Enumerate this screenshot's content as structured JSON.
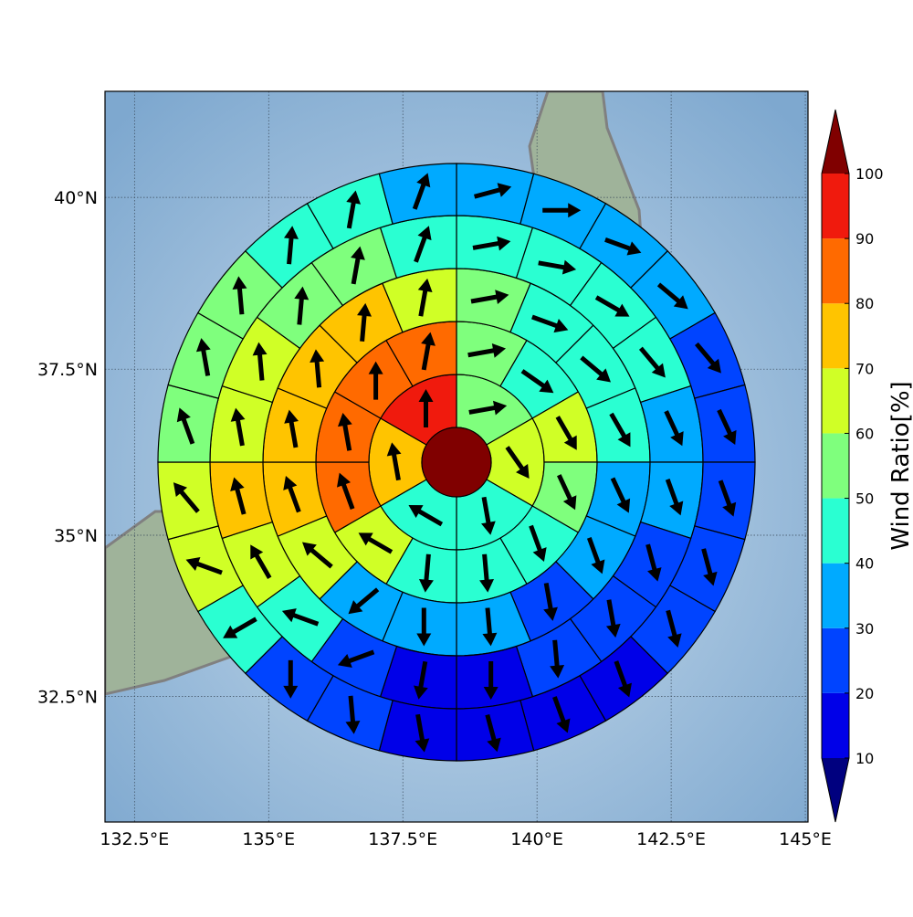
{
  "chart_data": {
    "type": "polar-sector-map",
    "projection": "mercator",
    "xlim": [
      131.95,
      145.05
    ],
    "ylim": [
      30.5,
      41.5
    ],
    "xticks": [
      {
        "value": 132.5,
        "label": "132.5°E"
      },
      {
        "value": 135,
        "label": "135°E"
      },
      {
        "value": 137.5,
        "label": "137.5°E"
      },
      {
        "value": 140,
        "label": "140°E"
      },
      {
        "value": 142.5,
        "label": "142.5°E"
      },
      {
        "value": 145,
        "label": "145°E"
      }
    ],
    "yticks": [
      {
        "value": 32.5,
        "label": "32.5°N"
      },
      {
        "value": 35,
        "label": "35°N"
      },
      {
        "value": 37.5,
        "label": "37.5°N"
      },
      {
        "value": 40,
        "label": "40°N"
      }
    ],
    "grid": true,
    "center_value": 100,
    "rings": [
      {
        "values": [
          55,
          65,
          45,
          45,
          75,
          95
        ],
        "directions": [
          80,
          145,
          170,
          300,
          350,
          0
        ]
      },
      {
        "values": [
          55,
          45,
          65,
          55,
          45,
          45,
          45,
          65,
          85,
          85,
          80,
          85
        ],
        "directions": [
          80,
          125,
          150,
          155,
          160,
          175,
          185,
          300,
          340,
          350,
          0,
          10
        ]
      },
      {
        "values": [
          55,
          45,
          45,
          45,
          35,
          35,
          25,
          35,
          35,
          35,
          65,
          75,
          75,
          75,
          75,
          65
        ],
        "directions": [
          80,
          110,
          130,
          150,
          155,
          160,
          170,
          175,
          180,
          230,
          310,
          340,
          350,
          355,
          5,
          10
        ]
      },
      {
        "values": [
          45,
          45,
          45,
          40,
          35,
          35,
          25,
          25,
          20,
          15,
          15,
          25,
          45,
          65,
          75,
          65,
          65,
          55,
          55,
          45
        ],
        "directions": [
          80,
          100,
          120,
          140,
          155,
          160,
          165,
          170,
          175,
          180,
          190,
          250,
          290,
          330,
          345,
          350,
          355,
          5,
          10,
          20
        ]
      },
      {
        "values": [
          35,
          35,
          35,
          35,
          25,
          25,
          25,
          25,
          20,
          15,
          15,
          15,
          15,
          25,
          25,
          45,
          65,
          65,
          55,
          55,
          55,
          45,
          45,
          35
        ],
        "directions": [
          75,
          90,
          110,
          130,
          140,
          155,
          160,
          165,
          165,
          160,
          160,
          165,
          170,
          175,
          180,
          240,
          290,
          320,
          340,
          350,
          355,
          5,
          10,
          20
        ]
      }
    ],
    "colorbar": {
      "label": "Wind Ratio[%]",
      "ticks": [
        10,
        20,
        30,
        40,
        50,
        60,
        70,
        80,
        90,
        100
      ],
      "colors": [
        "#00007f",
        "#0000e8",
        "#0044ff",
        "#00aaff",
        "#2affd2",
        "#7fff7d",
        "#d0ff26",
        "#ffc400",
        "#ff6a00",
        "#f01a0d",
        "#800000"
      ]
    }
  }
}
